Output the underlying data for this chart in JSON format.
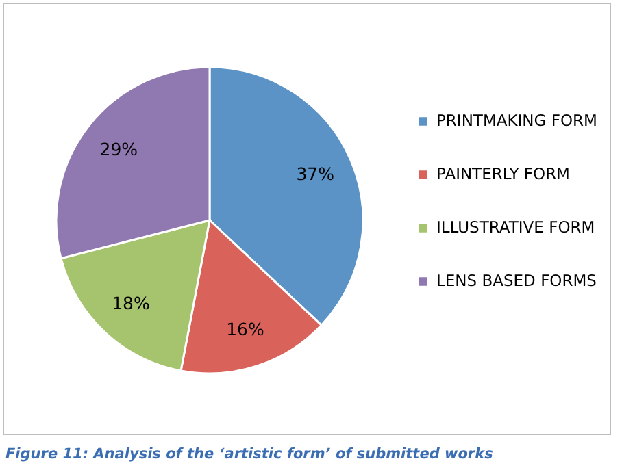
{
  "chart_data": {
    "type": "pie",
    "categories": [
      "PRINTMAKING FORM",
      "PAINTERLY FORM",
      "ILLUSTRATIVE FORM",
      "LENS BASED FORMS"
    ],
    "values": [
      37,
      16,
      18,
      29
    ],
    "colors": [
      "#5b93c7",
      "#d9625a",
      "#a6c46e",
      "#9079b0"
    ],
    "value_labels": [
      "37%",
      "16%",
      "18%",
      "29%"
    ],
    "legend": "right",
    "annotations": [
      "Figure 11: Analysis of the ‘artistic form’ of submitted works"
    ]
  }
}
